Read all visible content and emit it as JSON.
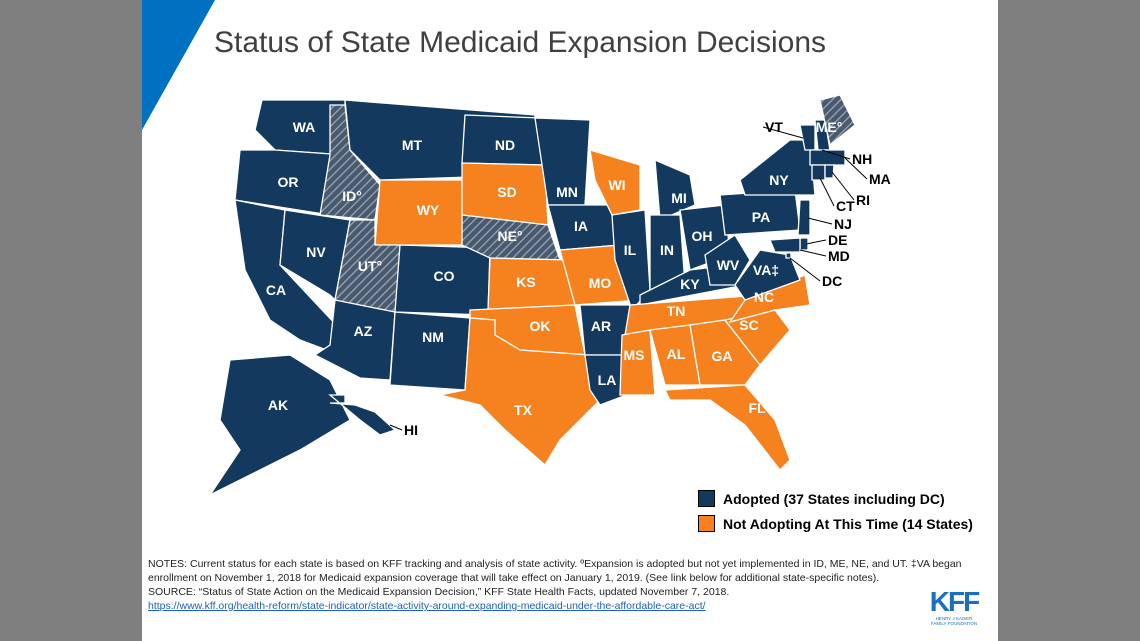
{
  "title": "Status of State Medicaid Expansion Decisions",
  "colors": {
    "adopted": "#133a5e",
    "not_adopting": "#f5821f",
    "accent": "#0070c0"
  },
  "legend": {
    "adopted": "Adopted (37 States including DC)",
    "not_adopting": "Not Adopting At This Time (14 States)"
  },
  "states": [
    {
      "abbr": "WA",
      "label": "WA",
      "status": "adopted"
    },
    {
      "abbr": "OR",
      "label": "OR",
      "status": "adopted"
    },
    {
      "abbr": "CA",
      "label": "CA",
      "status": "adopted"
    },
    {
      "abbr": "NV",
      "label": "NV",
      "status": "adopted"
    },
    {
      "abbr": "ID",
      "label": "ID°",
      "status": "adopted-pending"
    },
    {
      "abbr": "MT",
      "label": "MT",
      "status": "adopted"
    },
    {
      "abbr": "WY",
      "label": "WY",
      "status": "not_adopting"
    },
    {
      "abbr": "UT",
      "label": "UT°",
      "status": "adopted-pending"
    },
    {
      "abbr": "CO",
      "label": "CO",
      "status": "adopted"
    },
    {
      "abbr": "AZ",
      "label": "AZ",
      "status": "adopted"
    },
    {
      "abbr": "NM",
      "label": "NM",
      "status": "adopted"
    },
    {
      "abbr": "ND",
      "label": "ND",
      "status": "adopted"
    },
    {
      "abbr": "SD",
      "label": "SD",
      "status": "not_adopting"
    },
    {
      "abbr": "NE",
      "label": "NE°",
      "status": "adopted-pending"
    },
    {
      "abbr": "KS",
      "label": "KS",
      "status": "not_adopting"
    },
    {
      "abbr": "OK",
      "label": "OK",
      "status": "not_adopting"
    },
    {
      "abbr": "TX",
      "label": "TX",
      "status": "not_adopting"
    },
    {
      "abbr": "MN",
      "label": "MN",
      "status": "adopted"
    },
    {
      "abbr": "IA",
      "label": "IA",
      "status": "adopted"
    },
    {
      "abbr": "MO",
      "label": "MO",
      "status": "not_adopting"
    },
    {
      "abbr": "AR",
      "label": "AR",
      "status": "adopted"
    },
    {
      "abbr": "LA",
      "label": "LA",
      "status": "adopted"
    },
    {
      "abbr": "WI",
      "label": "WI",
      "status": "not_adopting"
    },
    {
      "abbr": "IL",
      "label": "IL",
      "status": "adopted"
    },
    {
      "abbr": "MI",
      "label": "MI",
      "status": "adopted"
    },
    {
      "abbr": "IN",
      "label": "IN",
      "status": "adopted"
    },
    {
      "abbr": "OH",
      "label": "OH",
      "status": "adopted"
    },
    {
      "abbr": "KY",
      "label": "KY",
      "status": "adopted"
    },
    {
      "abbr": "TN",
      "label": "TN",
      "status": "not_adopting"
    },
    {
      "abbr": "MS",
      "label": "MS",
      "status": "not_adopting"
    },
    {
      "abbr": "AL",
      "label": "AL",
      "status": "not_adopting"
    },
    {
      "abbr": "GA",
      "label": "GA",
      "status": "not_adopting"
    },
    {
      "abbr": "FL",
      "label": "FL",
      "status": "not_adopting"
    },
    {
      "abbr": "SC",
      "label": "SC",
      "status": "not_adopting"
    },
    {
      "abbr": "NC",
      "label": "NC",
      "status": "not_adopting"
    },
    {
      "abbr": "WV",
      "label": "WV",
      "status": "adopted"
    },
    {
      "abbr": "VA",
      "label": "VA‡",
      "status": "adopted"
    },
    {
      "abbr": "PA",
      "label": "PA",
      "status": "adopted"
    },
    {
      "abbr": "NY",
      "label": "NY",
      "status": "adopted"
    },
    {
      "abbr": "NJ",
      "label": "NJ",
      "status": "adopted"
    },
    {
      "abbr": "DE",
      "label": "DE",
      "status": "adopted"
    },
    {
      "abbr": "MD",
      "label": "MD",
      "status": "adopted"
    },
    {
      "abbr": "DC",
      "label": "DC",
      "status": "adopted"
    },
    {
      "abbr": "VT",
      "label": "VT",
      "status": "adopted"
    },
    {
      "abbr": "NH",
      "label": "NH",
      "status": "adopted"
    },
    {
      "abbr": "ME",
      "label": "ME°",
      "status": "adopted-pending"
    },
    {
      "abbr": "MA",
      "label": "MA",
      "status": "adopted"
    },
    {
      "abbr": "CT",
      "label": "CT",
      "status": "adopted"
    },
    {
      "abbr": "RI",
      "label": "RI",
      "status": "adopted"
    },
    {
      "abbr": "AK",
      "label": "AK",
      "status": "adopted"
    },
    {
      "abbr": "HI",
      "label": "HI",
      "status": "adopted"
    }
  ],
  "notes": {
    "notes_text": "NOTES: Current status for each state is based on KFF tracking and analysis of state activity. ºExpansion is adopted but not yet implemented in ID, ME, NE, and UT. ‡VA began enrollment on November 1, 2018 for Medicaid expansion coverage that will take effect on January 1, 2019. (See link below for additional state-specific notes).",
    "source_text": "SOURCE: “Status of State Action on the Medicaid Expansion Decision,” KFF State Health Facts, updated November 7, 2018.",
    "link": "https://www.kff.org/health-reform/state-indicator/state-activity-around-expanding-medicaid-under-the-affordable-care-act/"
  },
  "logo": {
    "name": "KFF",
    "subtitle": "HENRY J KAISER FAMILY FOUNDATION"
  }
}
